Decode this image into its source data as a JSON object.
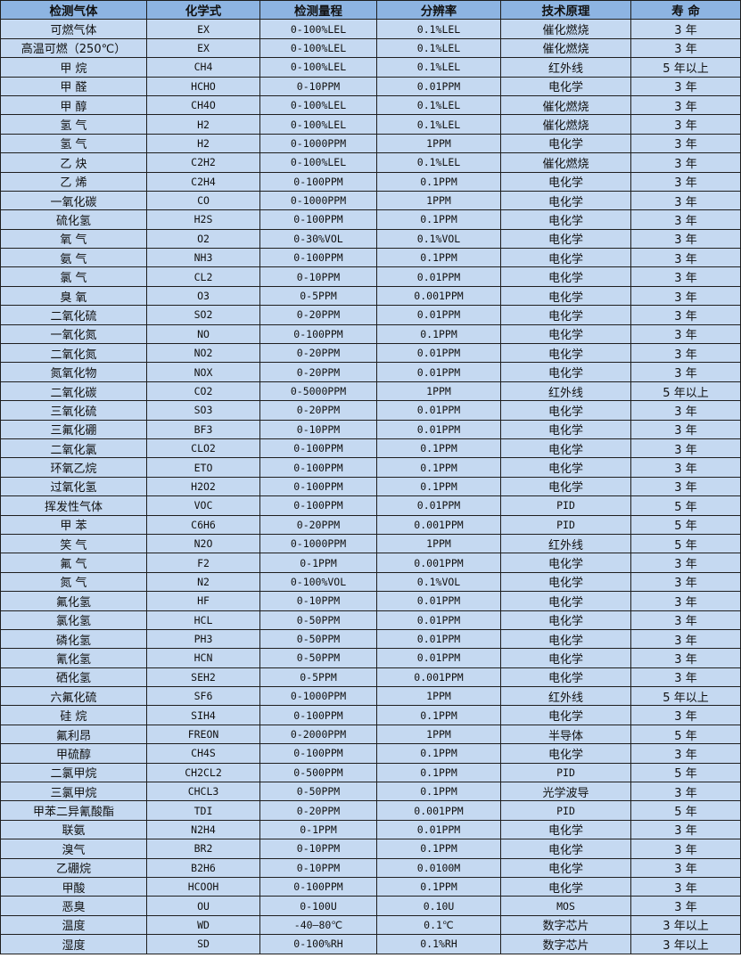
{
  "table": {
    "headers": [
      "检测气体",
      "化学式",
      "检测量程",
      "分辨率",
      "技术原理",
      "寿 命"
    ],
    "rows": [
      [
        "可燃气体",
        "EX",
        "0-100%LEL",
        "0.1%LEL",
        "催化燃烧",
        "3 年"
      ],
      [
        "高温可燃（250℃）",
        "EX",
        "0-100%LEL",
        "0.1%LEL",
        "催化燃烧",
        "3 年"
      ],
      [
        "甲 烷",
        "CH4",
        "0-100%LEL",
        "0.1%LEL",
        "红外线",
        "5 年以上"
      ],
      [
        "甲 醛",
        "HCHO",
        "0-10PPM",
        "0.01PPM",
        "电化学",
        "3 年"
      ],
      [
        "甲 醇",
        "CH4O",
        "0-100%LEL",
        "0.1%LEL",
        "催化燃烧",
        "3 年"
      ],
      [
        "氢 气",
        "H2",
        "0-100%LEL",
        "0.1%LEL",
        "催化燃烧",
        "3 年"
      ],
      [
        "氢 气",
        "H2",
        "0-1000PPM",
        "1PPM",
        "电化学",
        "3 年"
      ],
      [
        "乙 炔",
        "C2H2",
        "0-100%LEL",
        "0.1%LEL",
        "催化燃烧",
        "3 年"
      ],
      [
        "乙 烯",
        "C2H4",
        "0-100PPM",
        "0.1PPM",
        "电化学",
        "3 年"
      ],
      [
        "一氧化碳",
        "CO",
        "0-1000PPM",
        "1PPM",
        "电化学",
        "3 年"
      ],
      [
        "硫化氢",
        "H2S",
        "0-100PPM",
        "0.1PPM",
        "电化学",
        "3 年"
      ],
      [
        "氧 气",
        "O2",
        "0-30%VOL",
        "0.1%VOL",
        "电化学",
        "3 年"
      ],
      [
        "氨 气",
        "NH3",
        "0-100PPM",
        "0.1PPM",
        "电化学",
        "3 年"
      ],
      [
        "氯 气",
        "CL2",
        "0-10PPM",
        "0.01PPM",
        "电化学",
        "3 年"
      ],
      [
        "臭 氧",
        "O3",
        "0-5PPM",
        "0.001PPM",
        "电化学",
        "3 年"
      ],
      [
        "二氧化硫",
        "SO2",
        "0-20PPM",
        "0.01PPM",
        "电化学",
        "3 年"
      ],
      [
        "一氧化氮",
        "NO",
        "0-100PPM",
        "0.1PPM",
        "电化学",
        "3 年"
      ],
      [
        "二氧化氮",
        "NO2",
        "0-20PPM",
        "0.01PPM",
        "电化学",
        "3 年"
      ],
      [
        "氮氧化物",
        "NOX",
        "0-20PPM",
        "0.01PPM",
        "电化学",
        "3 年"
      ],
      [
        "二氧化碳",
        "CO2",
        "0-5000PPM",
        "1PPM",
        "红外线",
        "5 年以上"
      ],
      [
        "三氧化硫",
        "SO3",
        "0-20PPM",
        "0.01PPM",
        "电化学",
        "3 年"
      ],
      [
        "三氟化硼",
        "BF3",
        "0-10PPM",
        "0.01PPM",
        "电化学",
        "3 年"
      ],
      [
        "二氧化氯",
        "CLO2",
        "0-100PPM",
        "0.1PPM",
        "电化学",
        "3 年"
      ],
      [
        "环氧乙烷",
        "ETO",
        "0-100PPM",
        "0.1PPM",
        "电化学",
        "3 年"
      ],
      [
        "过氧化氢",
        "H2O2",
        "0-100PPM",
        "0.1PPM",
        "电化学",
        "3 年"
      ],
      [
        "挥发性气体",
        "VOC",
        "0-100PPM",
        "0.01PPM",
        "PID",
        "5 年"
      ],
      [
        "甲 苯",
        "C6H6",
        "0-20PPM",
        "0.001PPM",
        "PID",
        "5 年"
      ],
      [
        "笑 气",
        "N2O",
        "0-1000PPM",
        "1PPM",
        "红外线",
        "5 年"
      ],
      [
        "氟 气",
        "F2",
        "0-1PPM",
        "0.001PPM",
        "电化学",
        "3 年"
      ],
      [
        "氮 气",
        "N2",
        "0-100%VOL",
        "0.1%VOL",
        "电化学",
        "3 年"
      ],
      [
        "氟化氢",
        "HF",
        "0-10PPM",
        "0.01PPM",
        "电化学",
        "3 年"
      ],
      [
        "氯化氢",
        "HCL",
        "0-50PPM",
        "0.01PPM",
        "电化学",
        "3 年"
      ],
      [
        "磷化氢",
        "PH3",
        "0-50PPM",
        "0.01PPM",
        "电化学",
        "3 年"
      ],
      [
        "氰化氢",
        "HCN",
        "0-50PPM",
        "0.01PPM",
        "电化学",
        "3 年"
      ],
      [
        "硒化氢",
        "SEH2",
        "0-5PPM",
        "0.001PPM",
        "电化学",
        "3 年"
      ],
      [
        "六氟化硫",
        "SF6",
        "0-1000PPM",
        "1PPM",
        "红外线",
        "5 年以上"
      ],
      [
        "硅 烷",
        "SIH4",
        "0-100PPM",
        "0.1PPM",
        "电化学",
        "3 年"
      ],
      [
        "氟利昂",
        "FREON",
        "0-2000PPM",
        "1PPM",
        "半导体",
        "5 年"
      ],
      [
        "甲硫醇",
        "CH4S",
        "0-100PPM",
        "0.1PPM",
        "电化学",
        "3 年"
      ],
      [
        "二氯甲烷",
        "CH2CL2",
        "0-500PPM",
        "0.1PPM",
        "PID",
        "5 年"
      ],
      [
        "三氯甲烷",
        "CHCL3",
        "0-50PPM",
        "0.1PPM",
        "光学波导",
        "3 年"
      ],
      [
        "甲苯二异氰酸酯",
        "TDI",
        "0-20PPM",
        "0.001PPM",
        "PID",
        "5 年"
      ],
      [
        "联氨",
        "N2H4",
        "0-1PPM",
        "0.01PPM",
        "电化学",
        "3 年"
      ],
      [
        "溴气",
        "BR2",
        "0-10PPM",
        "0.1PPM",
        "电化学",
        "3 年"
      ],
      [
        "乙硼烷",
        "B2H6",
        "0-10PPM",
        "0.0100M",
        "电化学",
        "3 年"
      ],
      [
        "甲酸",
        "HCOOH",
        "0-100PPM",
        "0.1PPM",
        "电化学",
        "3 年"
      ],
      [
        "恶臭",
        "OU",
        "0-100U",
        "0.10U",
        "MOS",
        "3 年"
      ],
      [
        "温度",
        "WD",
        "-40—80℃",
        "0.1℃",
        "数字芯片",
        "3 年以上"
      ],
      [
        "湿度",
        "SD",
        "0-100%RH",
        "0.1%RH",
        "数字芯片",
        "3 年以上"
      ]
    ]
  },
  "colors": {
    "header_bg": "#8db4e2",
    "body_bg": "#c5d9f1",
    "border": "#1f1f1f"
  }
}
